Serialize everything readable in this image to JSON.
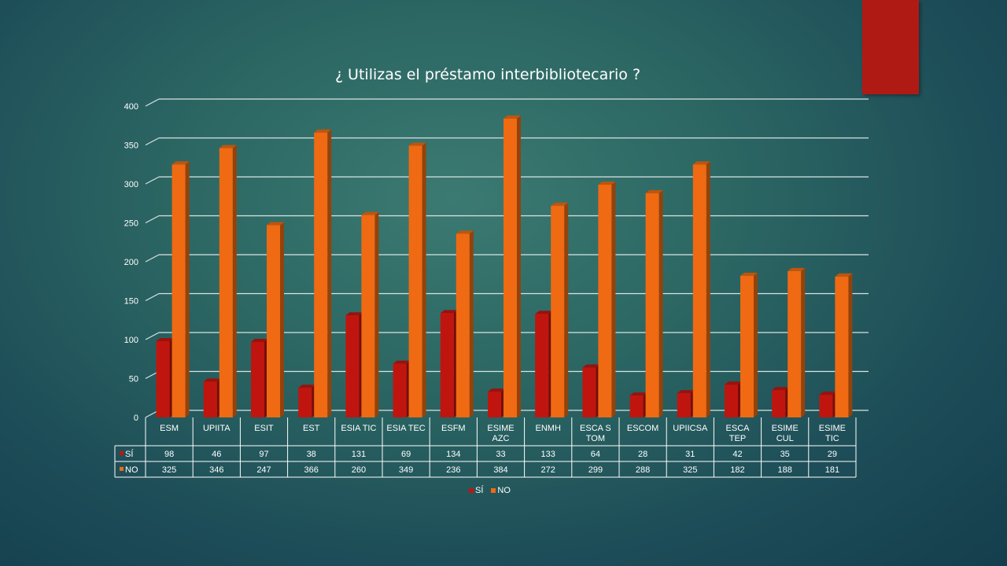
{
  "chart_data": {
    "type": "bar",
    "title": "¿ Utilizas el préstamo interbibliotecario ?",
    "categories": [
      "ESM",
      "UPIITA",
      "ESIT",
      "EST",
      "ESIA TIC",
      "ESIA TEC",
      "ESFM",
      "ESIME AZC",
      "ENMH",
      "ESCA S TOM",
      "ESCOM",
      "UPIICSA",
      "ESCA TEP",
      "ESIME CUL",
      "ESIME TIC"
    ],
    "series": [
      {
        "name": "SÍ",
        "color": "#c0150f",
        "values": [
          98,
          46,
          97,
          38,
          131,
          69,
          134,
          33,
          133,
          64,
          28,
          31,
          42,
          35,
          29
        ]
      },
      {
        "name": "NO",
        "color": "#ef6a12",
        "values": [
          325,
          346,
          247,
          366,
          260,
          349,
          236,
          384,
          272,
          299,
          288,
          325,
          182,
          188,
          181
        ]
      }
    ],
    "ylim": [
      0,
      400
    ],
    "yticks": [
      0,
      50,
      100,
      150,
      200,
      250,
      300,
      350,
      400
    ],
    "grid": true,
    "legend_position": "bottom",
    "data_table": true
  }
}
